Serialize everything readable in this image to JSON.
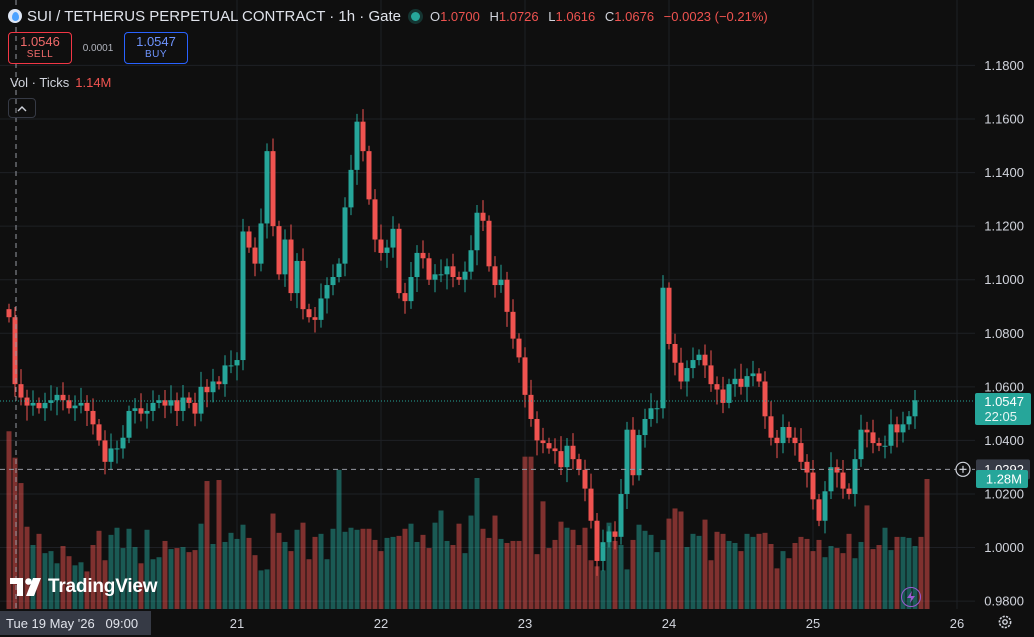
{
  "header": {
    "title": "SUI / TETHERUS PERPETUAL CONTRACT · 1h · Gate",
    "ohlc": {
      "o_label": "O",
      "o": "1.0700",
      "h_label": "H",
      "h": "1.0726",
      "l_label": "L",
      "l": "1.0616",
      "c_label": "C",
      "c": "1.0676",
      "change": "−0.0023 (−0.21%)"
    },
    "status_color": "#26a69a"
  },
  "trade": {
    "sell_price": "1.0546",
    "sell_label": "SELL",
    "spread": "0.0001",
    "buy_price": "1.0547",
    "buy_label": "BUY"
  },
  "volume_legend": {
    "label": "Vol · Ticks",
    "value": "1.14M"
  },
  "watermark": {
    "text": "TradingView"
  },
  "crosshair": {
    "date_label": "Tue 19 May '26   09:00",
    "price_label": "1.0292",
    "price": 1.0292
  },
  "last_price": {
    "price": 1.0547,
    "label": "1.0547",
    "countdown": "22:05"
  },
  "volume_badge": {
    "label": "1.28M"
  },
  "icons": {
    "symbol": "sui-logo-icon",
    "collapse": "chevron-up-icon",
    "add": "plus-circle-icon",
    "settings": "gear-icon",
    "alert": "lightning-icon"
  },
  "chart_data": {
    "type": "candlestick",
    "symbol": "SUI / TETHERUS PERPETUAL CONTRACT",
    "interval": "1h",
    "y_axis": {
      "ticks": [
        "1.1800",
        "1.1600",
        "1.1400",
        "1.1200",
        "1.1000",
        "1.0800",
        "1.0600",
        "1.0400",
        "1.0200",
        "1.0000",
        "0.9800"
      ],
      "ylim": [
        0.9722,
        1.1824
      ]
    },
    "x_axis": {
      "ticks": [
        "21",
        "22",
        "23",
        "24",
        "25",
        "26"
      ],
      "tick_hours": [
        38,
        62,
        86,
        110,
        134,
        158
      ]
    },
    "grid": true,
    "colors": {
      "up": "#26a69a",
      "down": "#ef5350",
      "grid": "#1e2025"
    },
    "candles": {
      "start": "2026-05-19 09:00",
      "close": [
        1.086,
        1.061,
        1.056,
        1.053,
        1.054,
        1.052,
        1.054,
        1.055,
        1.057,
        1.055,
        1.052,
        1.053,
        1.054,
        1.051,
        1.046,
        1.04,
        1.032,
        1.037,
        1.037,
        1.041,
        1.051,
        1.052,
        1.05,
        1.051,
        1.054,
        1.055,
        1.053,
        1.055,
        1.051,
        1.056,
        1.054,
        1.05,
        1.06,
        1.058,
        1.062,
        1.061,
        1.068,
        1.068,
        1.07,
        1.118,
        1.112,
        1.106,
        1.121,
        1.148,
        1.12,
        1.102,
        1.115,
        1.095,
        1.107,
        1.089,
        1.086,
        1.085,
        1.093,
        1.098,
        1.101,
        1.106,
        1.127,
        1.141,
        1.159,
        1.148,
        1.13,
        1.115,
        1.11,
        1.112,
        1.119,
        1.095,
        1.092,
        1.101,
        1.11,
        1.108,
        1.1,
        1.102,
        1.102,
        1.105,
        1.101,
        1.1,
        1.103,
        1.111,
        1.125,
        1.122,
        1.105,
        1.098,
        1.1,
        1.088,
        1.078,
        1.071,
        1.057,
        1.048,
        1.04,
        1.039,
        1.037,
        1.036,
        1.03,
        1.038,
        1.033,
        1.029,
        1.022,
        1.01,
        0.995,
        1.002,
        1.006,
        1.004,
        1.02,
        1.044,
        1.027,
        1.042,
        1.048,
        1.052,
        1.052,
        1.097,
        1.076,
        1.069,
        1.062,
        1.067,
        1.07,
        1.072,
        1.068,
        1.061,
        1.059,
        1.054,
        1.061,
        1.063,
        1.06,
        1.064,
        1.065,
        1.062,
        1.049,
        1.041,
        1.039,
        1.045,
        1.041,
        1.039,
        1.032,
        1.028,
        1.018,
        1.01,
        1.021,
        1.03,
        1.028,
        1.022,
        1.02,
        1.033,
        1.044,
        1.043,
        1.039,
        1.038,
        1.038,
        1.046,
        1.043,
        1.046,
        1.049,
        1.055
      ],
      "volume_million": [
        1.75,
        1.49,
        1.24,
        0.81,
        0.63,
        0.74,
        0.55,
        0.57,
        0.45,
        0.62,
        0.52,
        0.43,
        0.46,
        0.37,
        0.63,
        0.77,
        0.48,
        0.73,
        0.8,
        0.6,
        0.79,
        0.61,
        0.45,
        0.78,
        0.49,
        0.51,
        0.67,
        0.59,
        0.6,
        0.61,
        0.56,
        0.58,
        0.84,
        1.26,
        0.64,
        1.27,
        0.66,
        0.75,
        0.69,
        0.83,
        0.7,
        0.53,
        0.38,
        0.39,
        0.94,
        0.75,
        0.66,
        0.57,
        0.78,
        0.85,
        0.49,
        0.71,
        0.74,
        0.49,
        0.79,
        1.37,
        0.76,
        0.8,
        0.78,
        0.79,
        0.79,
        0.68,
        0.57,
        0.7,
        0.71,
        0.72,
        0.79,
        0.84,
        0.66,
        0.73,
        0.6,
        0.85,
        0.97,
        0.67,
        0.63,
        0.84,
        0.55,
        0.92,
        1.29,
        0.79,
        0.7,
        0.92,
        0.69,
        0.65,
        0.67,
        0.67,
        1.5,
        1.5,
        0.54,
        1.06,
        0.6,
        0.68,
        0.86,
        0.8,
        0.78,
        0.63,
        0.8,
        0.48,
        0.42,
        0.38,
        0.85,
        0.67,
        0.63,
        0.39,
        0.68,
        0.83,
        0.77,
        0.73,
        0.56,
        0.68,
        0.89,
        0.99,
        0.96,
        0.61,
        0.74,
        0.72,
        0.88,
        0.48,
        0.76,
        0.74,
        0.67,
        0.65,
        0.57,
        0.74,
        0.71,
        0.74,
        0.75,
        0.64,
        0.4,
        0.57,
        0.5,
        0.65,
        0.71,
        0.69,
        0.57,
        0.68,
        0.51,
        0.62,
        0.6,
        0.55,
        0.74,
        0.5,
        0.66,
        1.02,
        0.59,
        0.63,
        0.8,
        0.58,
        0.71,
        0.71,
        0.7,
        0.62,
        0.71,
        1.28
      ]
    }
  }
}
